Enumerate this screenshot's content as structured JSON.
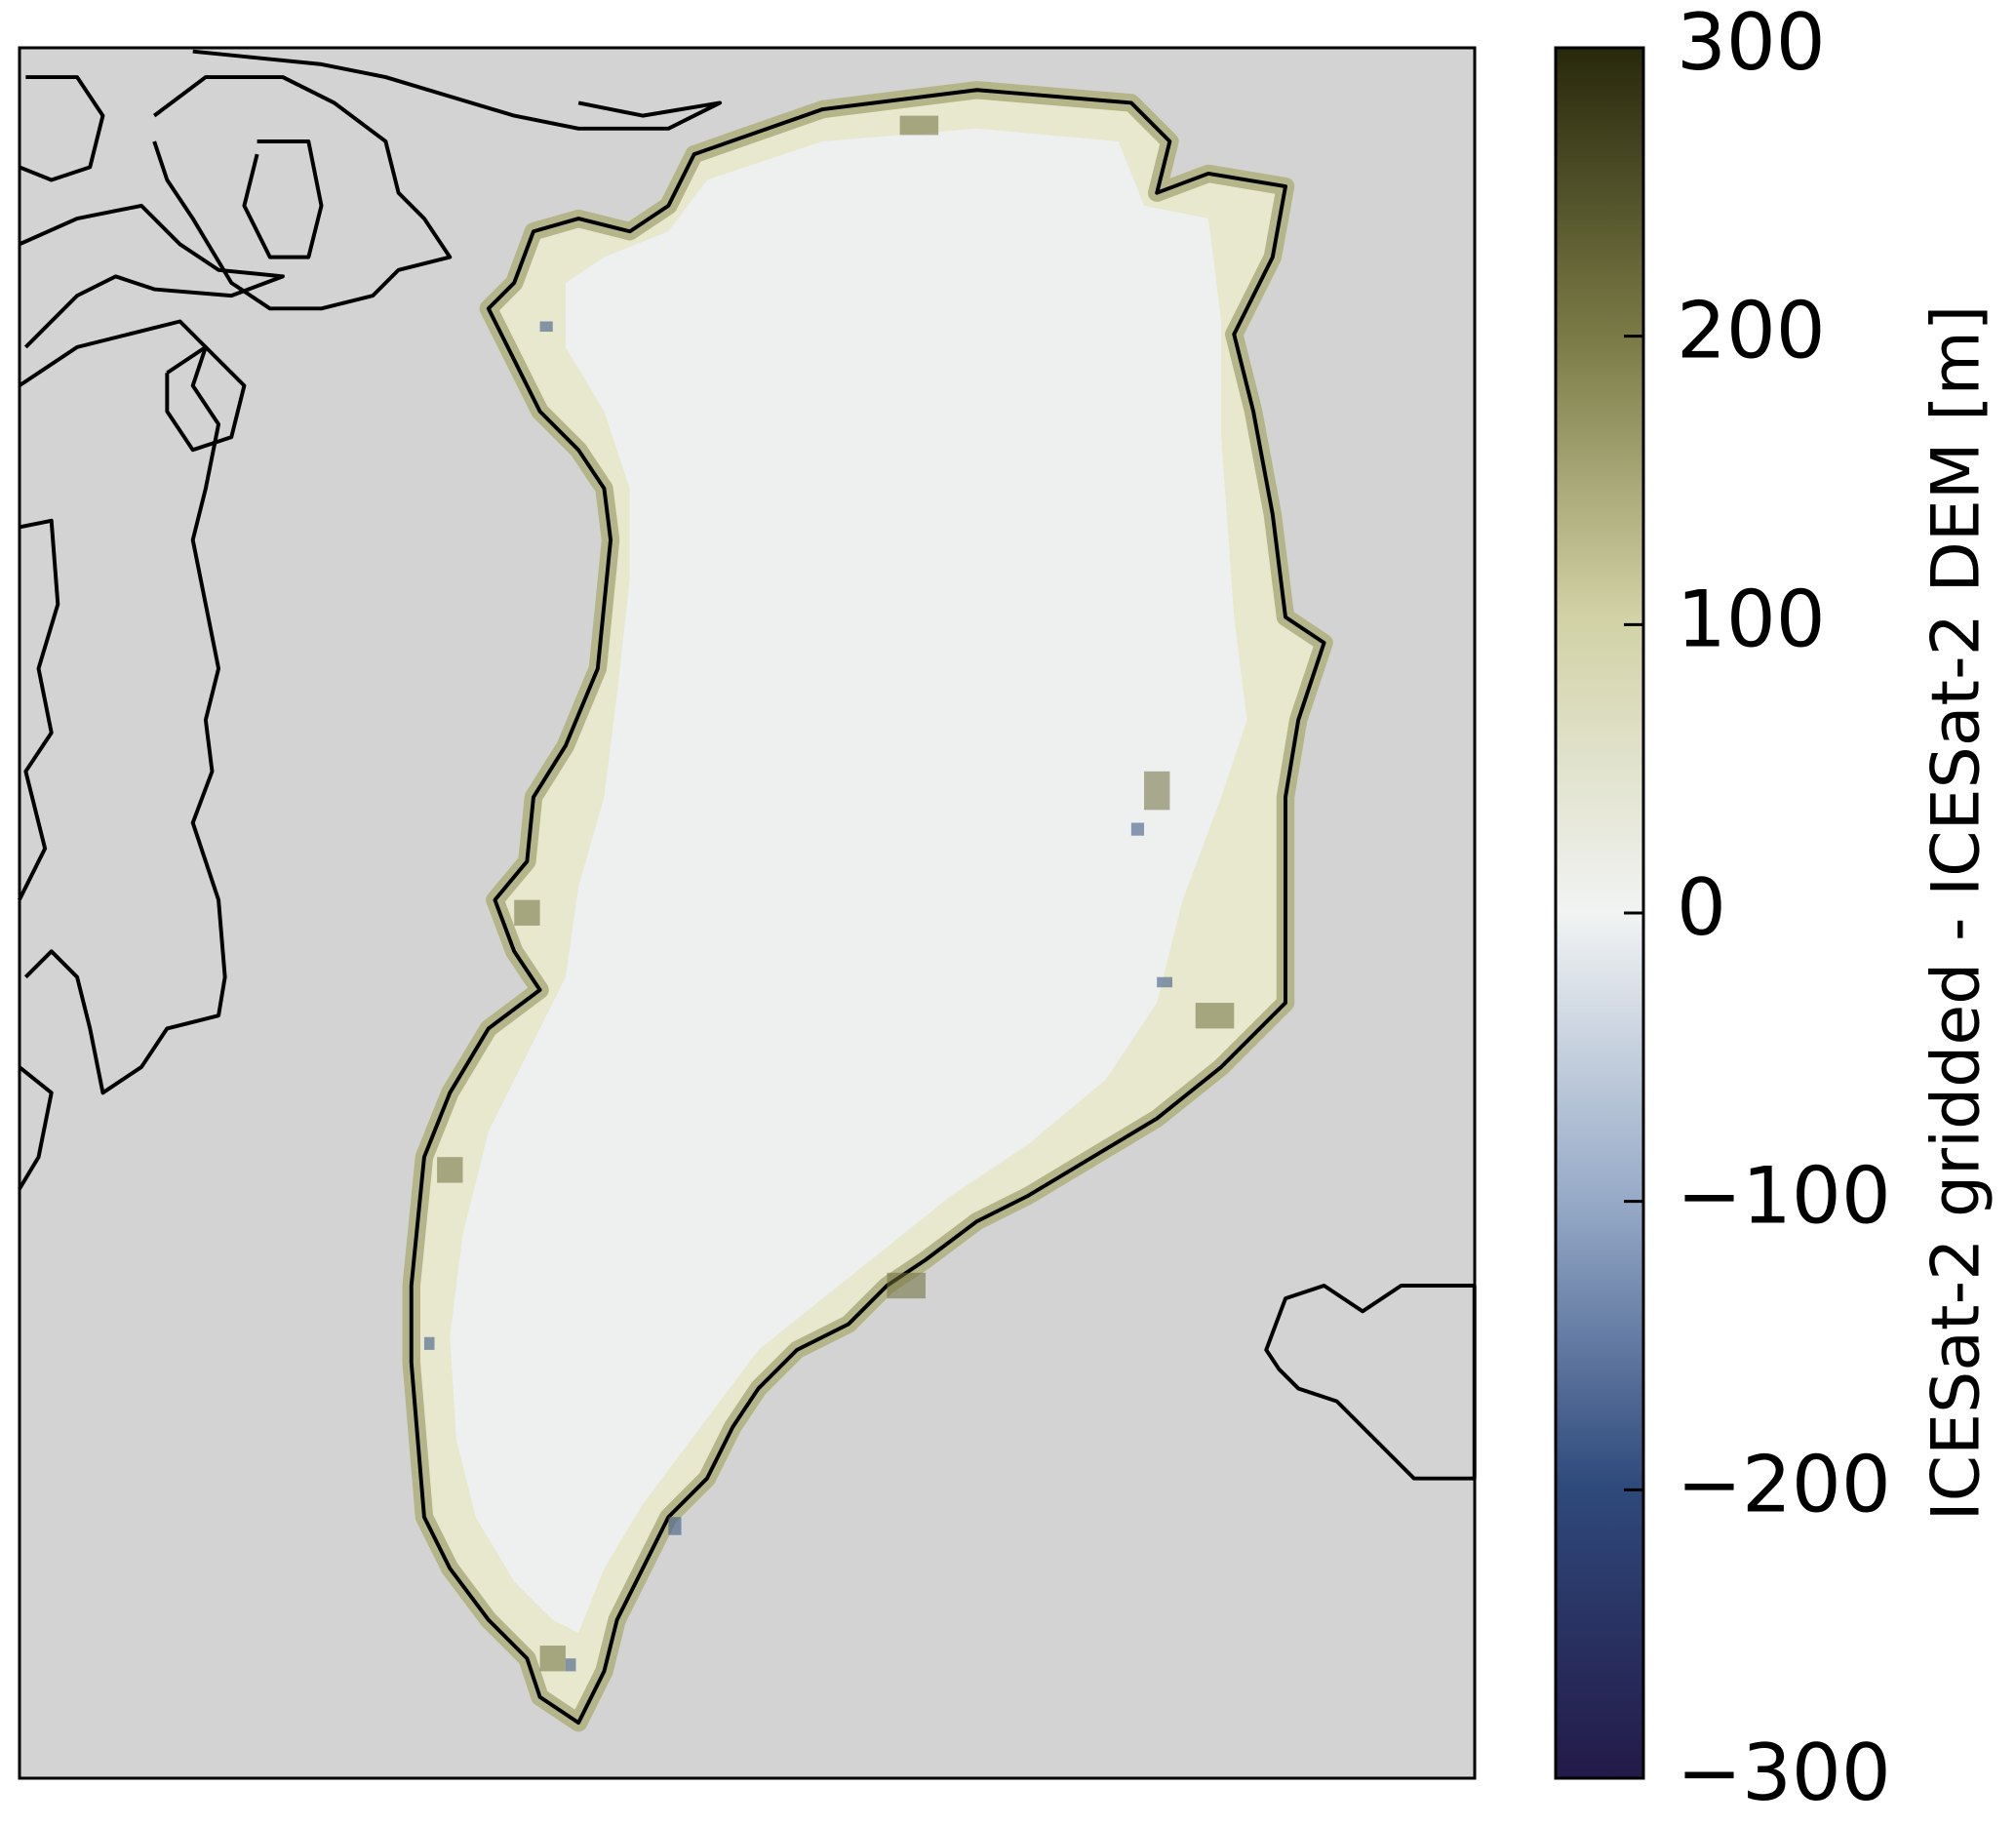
{
  "chart_data": {
    "type": "map",
    "colorbar_label": "ICESat-2 gridded - ICESat-2 DEM [m]",
    "clim": [
      -300,
      300
    ],
    "cticks": [
      {
        "value": -300,
        "label": "−300"
      },
      {
        "value": -200,
        "label": "−200"
      },
      {
        "value": -100,
        "label": "−100"
      },
      0,
      100,
      200,
      300
    ]
  }
}
